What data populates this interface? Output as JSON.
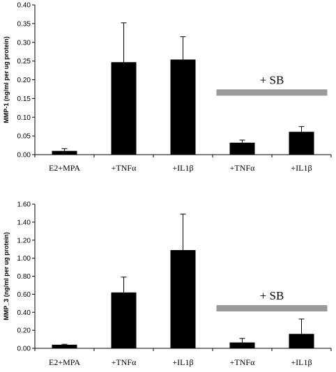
{
  "chart_data": [
    {
      "type": "bar",
      "ylabel": "MMP-1 (ng/ml per ug protein)",
      "ylim": [
        0,
        0.4
      ],
      "yticks": [
        "0.00",
        "0.05",
        "0.10",
        "0.15",
        "0.20",
        "0.25",
        "0.30",
        "0.35",
        "0.40"
      ],
      "categories": [
        "E2+MPA",
        "+TNFα",
        "+IL1β",
        "+TNFα",
        "+IL1β"
      ],
      "values": [
        0.01,
        0.247,
        0.254,
        0.032,
        0.061
      ],
      "errors": [
        0.006,
        0.105,
        0.061,
        0.007,
        0.014
      ],
      "annotation": {
        "text": "+ SB",
        "spans_categories": [
          3,
          4
        ],
        "bar_level": 0.165,
        "color": "#999999"
      },
      "bar_color": "#000000",
      "grid": false
    },
    {
      "type": "bar",
      "ylabel": "MMP_3 (ng/ml per ug protein)",
      "ylim": [
        0,
        1.6
      ],
      "yticks": [
        "0.00",
        "0.20",
        "0.40",
        "0.60",
        "0.80",
        "1.00",
        "1.20",
        "1.40",
        "1.60"
      ],
      "categories": [
        "E2+MPA",
        "+TNFα",
        "+IL1β",
        "+TNFα",
        "+IL1β"
      ],
      "values": [
        0.04,
        0.62,
        1.09,
        0.065,
        0.16
      ],
      "errors": [
        0.005,
        0.17,
        0.4,
        0.045,
        0.165
      ],
      "annotation": {
        "text": "+ SB",
        "spans_categories": [
          3,
          4
        ],
        "bar_level": 0.44,
        "color": "#999999"
      },
      "bar_color": "#000000",
      "grid": false
    }
  ]
}
